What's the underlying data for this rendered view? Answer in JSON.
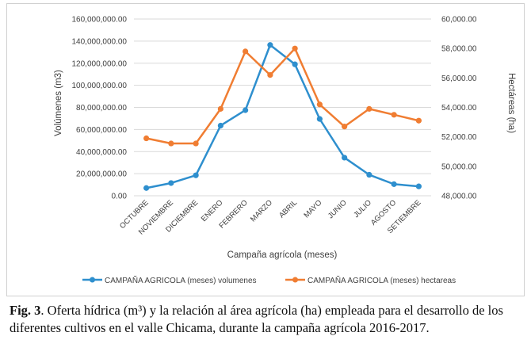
{
  "caption": {
    "label": "Fig. 3",
    "text": ". Oferta hídrica (m³) y la relación al área agrícola (ha) empleada para el desarrollo de los diferentes cultivos en el valle Chicama, durante la campaña agrícola 2016-2017."
  },
  "chart_data": {
    "type": "line",
    "title": "",
    "xlabel": "Campaña agrícola (meses)",
    "ylabel": "Volúmenes (m3)",
    "y2label": "Hectáreas (ha)",
    "categories": [
      "OCTUBRE",
      "NOVIEMBRE",
      "DICIEMBRE",
      "ENERO",
      "FEBRERO",
      "MARZO",
      "ABRIL",
      "MAYO",
      "JUNIO",
      "JULIO",
      "AGOSTO",
      "SETIEMBRE"
    ],
    "ylim": [
      0,
      160000000
    ],
    "y2lim": [
      48000,
      60000
    ],
    "yticks": [
      "0.00",
      "20,000,000.00",
      "40,000,000.00",
      "60,000,000.00",
      "80,000,000.00",
      "100,000,000.00",
      "120,000,000.00",
      "140,000,000.00",
      "160,000,000.00"
    ],
    "y2ticks": [
      "48,000.00",
      "50,000.00",
      "52,000.00",
      "54,000.00",
      "56,000.00",
      "58,000.00",
      "60,000.00"
    ],
    "grid": true,
    "legend_position": "bottom",
    "series": [
      {
        "name": "CAMPAÑA AGRICOLA (meses) volumenes",
        "axis": "left",
        "color": "#2e8fce",
        "values": [
          7000000,
          11500000,
          18500000,
          63500000,
          77500000,
          136500000,
          119000000,
          69500000,
          34500000,
          19000000,
          10500000,
          8500000
        ]
      },
      {
        "name": "CAMPAÑA AGRICOLA (meses) hectareas",
        "axis": "right",
        "color": "#f07d32",
        "values": [
          51900,
          51550,
          51550,
          53900,
          57800,
          56200,
          58000,
          54200,
          52700,
          53900,
          53500,
          53100
        ]
      }
    ]
  }
}
